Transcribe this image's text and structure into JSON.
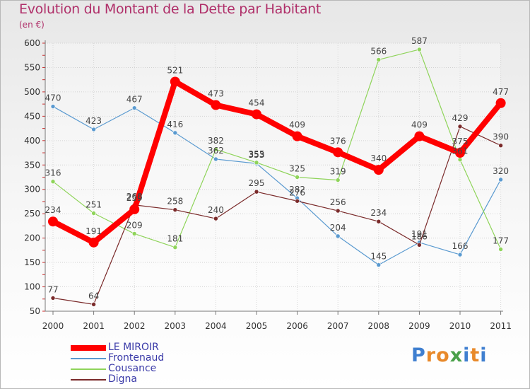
{
  "title": "Evolution du Montant de la Dette par Habitant",
  "subtitle": "(en €)",
  "logo": {
    "letters": [
      "P",
      "r",
      "o",
      "x",
      "i",
      "t",
      "i"
    ],
    "colors": [
      "#3f7fd0",
      "#e8892a",
      "#e8892a",
      "#4aa04a",
      "#3f7fd0",
      "#e8892a",
      "#3f7fd0"
    ]
  },
  "chart_data": {
    "type": "line",
    "x": [
      "2000",
      "2001",
      "2002",
      "2003",
      "2004",
      "2005",
      "2006",
      "2007",
      "2008",
      "2009",
      "2010",
      "2011"
    ],
    "ylim": [
      50,
      600
    ],
    "yticks": [
      50,
      100,
      150,
      200,
      250,
      300,
      350,
      400,
      450,
      500,
      550,
      600
    ],
    "grid": true,
    "legend_position": "bottom-left",
    "series": [
      {
        "name": "LE MIROIR",
        "color": "#ff0000",
        "width": 8,
        "marker": 7,
        "values": [
          234,
          191,
          259,
          521,
          473,
          454,
          409,
          376,
          340,
          409,
          375,
          477
        ],
        "labels": [
          "234",
          "191",
          "259",
          "521",
          "473",
          "454",
          "409",
          "376",
          "340",
          "409",
          "375",
          "477"
        ]
      },
      {
        "name": "Frontenaud",
        "color": "#5a9ad0",
        "width": 1.2,
        "marker": 3,
        "values": [
          470,
          423,
          467,
          416,
          362,
          353,
          282,
          204,
          145,
          191,
          166,
          320
        ],
        "labels": [
          "470",
          "423",
          "467",
          "416",
          "362",
          "353",
          "282",
          "204",
          "145",
          "191",
          "166",
          "320"
        ]
      },
      {
        "name": "Cousance",
        "color": "#8fd45a",
        "width": 1.2,
        "marker": 3,
        "values": [
          316,
          251,
          209,
          181,
          382,
          355,
          325,
          319,
          566,
          587,
          361,
          177
        ],
        "labels": [
          "316",
          "251",
          "209",
          "181",
          "382",
          "355",
          "325",
          "319",
          "566",
          "587",
          "361",
          "177"
        ]
      },
      {
        "name": "Digna",
        "color": "#7a2a2a",
        "width": 1.2,
        "marker": 3,
        "values": [
          77,
          64,
          268,
          258,
          240,
          295,
          276,
          256,
          234,
          186,
          429,
          390
        ],
        "labels": [
          "77",
          "64",
          "268",
          "258",
          "240",
          "295",
          "276",
          "256",
          "234",
          "186",
          "429",
          "390"
        ]
      }
    ]
  }
}
